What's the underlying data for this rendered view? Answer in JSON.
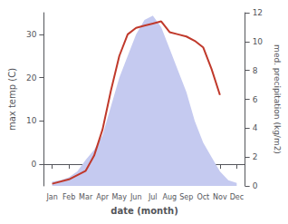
{
  "chart_data": {
    "type": "line",
    "xlabel": "date (month)",
    "ylabel": "max temp (C)",
    "y2label": "med. precipitation (kg/m2)",
    "xlim": [
      0.5,
      12.5
    ],
    "xticks": [
      {
        "value": 1,
        "label": "Jan"
      },
      {
        "value": 2,
        "label": "Feb"
      },
      {
        "value": 3,
        "label": "Mar"
      },
      {
        "value": 4,
        "label": "Apr"
      },
      {
        "value": 5,
        "label": "May"
      },
      {
        "value": 6,
        "label": "Jun"
      },
      {
        "value": 7,
        "label": "Jul"
      },
      {
        "value": 8,
        "label": "Aug"
      },
      {
        "value": 9,
        "label": "Sep"
      },
      {
        "value": 10,
        "label": "Oct"
      },
      {
        "value": 11,
        "label": "Nov"
      },
      {
        "value": 12,
        "label": "Dec"
      }
    ],
    "ylim": [
      -5,
      35
    ],
    "yticks": [
      0,
      10,
      20,
      30
    ],
    "y2lim": [
      0,
      12
    ],
    "y2ticks": [
      0,
      2,
      4,
      6,
      8,
      10,
      12
    ],
    "grid": false,
    "series": [
      {
        "type": "area",
        "axis": "y2",
        "color": "#c5caf0",
        "x": [
          1,
          1.5,
          2,
          2.5,
          3,
          3.5,
          4,
          4.5,
          5,
          5.5,
          6,
          6.5,
          7,
          7.5,
          8,
          8.5,
          9,
          9.5,
          10,
          10.5,
          11,
          11.5,
          12
        ],
        "values": [
          0.3,
          0.4,
          0.6,
          1.0,
          1.8,
          2.5,
          3.5,
          5.5,
          7.5,
          9.0,
          10.5,
          11.5,
          11.8,
          11.0,
          9.5,
          8.0,
          6.5,
          4.5,
          3.0,
          2.0,
          1.0,
          0.4,
          0.2
        ]
      },
      {
        "type": "line",
        "color": "#c0392b",
        "x": [
          1,
          2,
          3,
          3.5,
          4,
          4.5,
          5,
          5.5,
          6,
          6.5,
          7,
          7.5,
          8,
          8.5,
          9,
          9.5,
          10,
          10.5,
          11
        ],
        "values": [
          -4.5,
          -3.5,
          -1.5,
          2,
          8,
          17,
          25,
          30,
          31.5,
          32,
          32.5,
          33,
          30.5,
          30,
          29.5,
          28.5,
          27,
          22,
          16
        ]
      }
    ]
  }
}
